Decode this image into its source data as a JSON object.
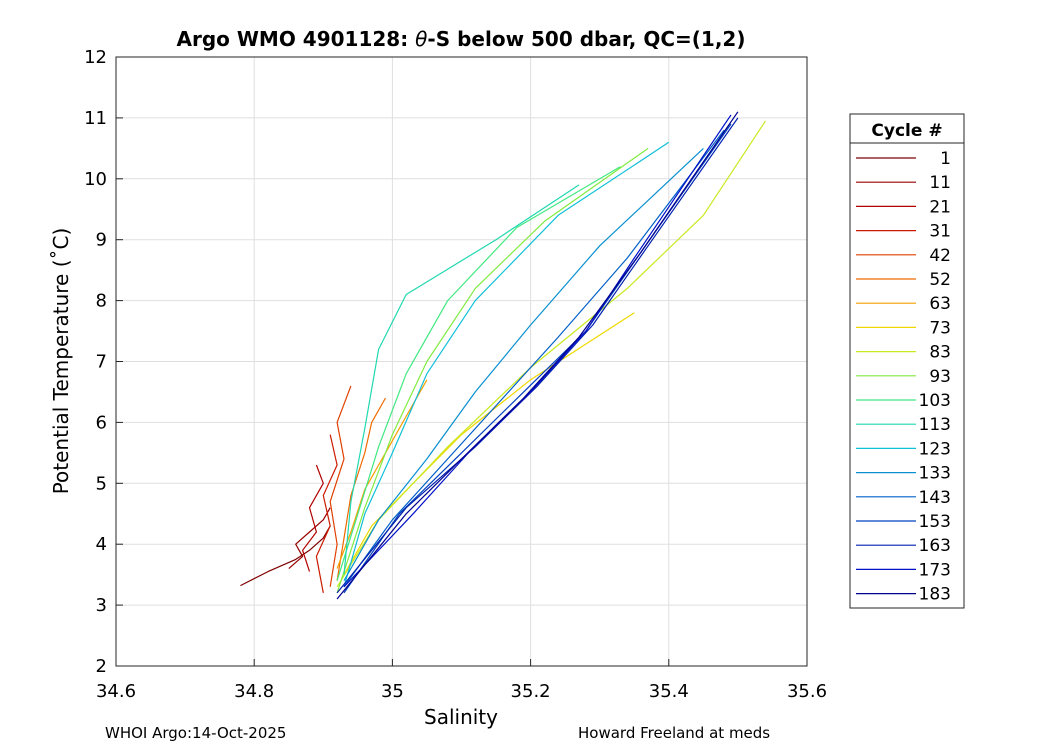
{
  "chart_data": {
    "type": "line",
    "title_prefix": "Argo WMO 4901128: ",
    "title_theta": "θ",
    "title_suffix": "-S below 500 dbar,  QC=(1,2)",
    "xlabel": "Salinity",
    "ylabel": "Potential Temperature (˚C)",
    "xlim": [
      34.6,
      35.6
    ],
    "ylim": [
      2,
      12
    ],
    "xticks": [
      34.6,
      34.8,
      35,
      35.2,
      35.4,
      35.6
    ],
    "xtick_labels": [
      "34.6",
      "34.8",
      "35",
      "35.2",
      "35.4",
      "35.6"
    ],
    "yticks": [
      2,
      3,
      4,
      5,
      6,
      7,
      8,
      9,
      10,
      11,
      12
    ],
    "ytick_labels": [
      "2",
      "3",
      "4",
      "5",
      "6",
      "7",
      "8",
      "9",
      "10",
      "11",
      "12"
    ],
    "grid": true,
    "legend": {
      "title": "Cycle #",
      "placement": "outside-right",
      "entries": [
        "1",
        "11",
        "21",
        "31",
        "42",
        "52",
        "63",
        "73",
        "83",
        "93",
        "103",
        "113",
        "123",
        "133",
        "143",
        "153",
        "163",
        "173",
        "183"
      ],
      "colors": [
        "#7f0000",
        "#990000",
        "#b30000",
        "#cc1a00",
        "#e04000",
        "#ef6a00",
        "#f5a000",
        "#f0d800",
        "#c8ea20",
        "#80ec40",
        "#40e880",
        "#20d8b0",
        "#10c0d8",
        "#0890d0",
        "#0060c8",
        "#0040c0",
        "#0020b0",
        "#0010c8",
        "#000090"
      ]
    },
    "series": [
      {
        "name": "1",
        "color": "#7f0000",
        "points": [
          [
            34.78,
            3.32
          ],
          [
            34.82,
            3.55
          ],
          [
            34.86,
            3.75
          ],
          [
            34.88,
            3.9
          ],
          [
            34.9,
            4.1
          ],
          [
            34.91,
            4.3
          ]
        ]
      },
      {
        "name": "11",
        "color": "#990000",
        "points": [
          [
            34.85,
            3.6
          ],
          [
            34.87,
            3.8
          ],
          [
            34.86,
            4.0
          ],
          [
            34.88,
            4.2
          ],
          [
            34.9,
            4.4
          ],
          [
            34.91,
            4.6
          ]
        ]
      },
      {
        "name": "21",
        "color": "#b30000",
        "points": [
          [
            34.88,
            3.55
          ],
          [
            34.87,
            3.9
          ],
          [
            34.89,
            4.2
          ],
          [
            34.88,
            4.6
          ],
          [
            34.9,
            5.0
          ],
          [
            34.89,
            5.3
          ]
        ]
      },
      {
        "name": "31",
        "color": "#cc1a00",
        "points": [
          [
            34.9,
            3.2
          ],
          [
            34.89,
            3.8
          ],
          [
            34.91,
            4.3
          ],
          [
            34.9,
            4.8
          ],
          [
            34.92,
            5.3
          ],
          [
            34.91,
            5.8
          ]
        ]
      },
      {
        "name": "42",
        "color": "#e04000",
        "points": [
          [
            34.91,
            3.3
          ],
          [
            34.92,
            4.0
          ],
          [
            34.91,
            4.7
          ],
          [
            34.93,
            5.4
          ],
          [
            34.92,
            6.0
          ],
          [
            34.94,
            6.6
          ]
        ]
      },
      {
        "name": "52",
        "color": "#ef6a00",
        "points": [
          [
            34.92,
            3.4
          ],
          [
            34.93,
            4.1
          ],
          [
            34.94,
            4.8
          ],
          [
            34.96,
            5.5
          ],
          [
            34.97,
            6.0
          ],
          [
            34.99,
            6.4
          ]
        ]
      },
      {
        "name": "63",
        "color": "#f5a000",
        "points": [
          [
            34.92,
            3.6
          ],
          [
            34.94,
            4.2
          ],
          [
            34.96,
            4.9
          ],
          [
            34.99,
            5.5
          ],
          [
            35.02,
            6.1
          ],
          [
            35.05,
            6.7
          ]
        ]
      },
      {
        "name": "73",
        "color": "#f0d800",
        "points": [
          [
            34.93,
            3.5
          ],
          [
            34.97,
            4.3
          ],
          [
            35.03,
            5.0
          ],
          [
            35.1,
            5.8
          ],
          [
            35.2,
            6.7
          ],
          [
            35.35,
            7.8
          ]
        ]
      },
      {
        "name": "83",
        "color": "#c8ea20",
        "points": [
          [
            34.92,
            3.3
          ],
          [
            34.98,
            4.4
          ],
          [
            35.08,
            5.6
          ],
          [
            35.2,
            6.9
          ],
          [
            35.34,
            8.2
          ],
          [
            35.45,
            9.4
          ],
          [
            35.54,
            10.95
          ]
        ]
      },
      {
        "name": "93",
        "color": "#80ec40",
        "points": [
          [
            34.92,
            3.2
          ],
          [
            34.96,
            4.6
          ],
          [
            35.0,
            5.8
          ],
          [
            35.05,
            7.0
          ],
          [
            35.12,
            8.2
          ],
          [
            35.22,
            9.3
          ],
          [
            35.37,
            10.5
          ]
        ]
      },
      {
        "name": "103",
        "color": "#40e880",
        "points": [
          [
            34.92,
            3.4
          ],
          [
            34.95,
            4.5
          ],
          [
            34.98,
            5.6
          ],
          [
            35.02,
            6.8
          ],
          [
            35.08,
            8.0
          ],
          [
            35.18,
            9.2
          ],
          [
            35.33,
            10.2
          ]
        ]
      },
      {
        "name": "113",
        "color": "#20d8b0",
        "points": [
          [
            34.93,
            3.5
          ],
          [
            34.94,
            4.7
          ],
          [
            34.96,
            5.9
          ],
          [
            34.98,
            7.2
          ],
          [
            35.02,
            8.1
          ],
          [
            35.15,
            9.0
          ],
          [
            35.27,
            9.9
          ]
        ]
      },
      {
        "name": "123",
        "color": "#10c0d8",
        "points": [
          [
            34.93,
            3.3
          ],
          [
            34.96,
            4.5
          ],
          [
            35.0,
            5.5
          ],
          [
            35.05,
            6.8
          ],
          [
            35.12,
            8.0
          ],
          [
            35.24,
            9.4
          ],
          [
            35.4,
            10.6
          ]
        ]
      },
      {
        "name": "133",
        "color": "#0890d0",
        "points": [
          [
            34.93,
            3.4
          ],
          [
            34.98,
            4.4
          ],
          [
            35.05,
            5.4
          ],
          [
            35.12,
            6.5
          ],
          [
            35.2,
            7.6
          ],
          [
            35.3,
            8.9
          ],
          [
            35.45,
            10.5
          ]
        ]
      },
      {
        "name": "143",
        "color": "#0060c8",
        "points": [
          [
            34.93,
            3.3
          ],
          [
            35.0,
            4.4
          ],
          [
            35.08,
            5.4
          ],
          [
            35.16,
            6.4
          ],
          [
            35.24,
            7.4
          ],
          [
            35.34,
            8.7
          ],
          [
            35.48,
            10.8
          ]
        ]
      },
      {
        "name": "153",
        "color": "#0040c0",
        "points": [
          [
            34.93,
            3.2
          ],
          [
            35.01,
            4.5
          ],
          [
            35.1,
            5.5
          ],
          [
            35.19,
            6.5
          ],
          [
            35.28,
            7.5
          ],
          [
            35.36,
            8.8
          ],
          [
            35.49,
            10.9
          ]
        ]
      },
      {
        "name": "163",
        "color": "#0020b0",
        "points": [
          [
            34.92,
            3.2
          ],
          [
            35.02,
            4.6
          ],
          [
            35.12,
            5.6
          ],
          [
            35.21,
            6.6
          ],
          [
            35.29,
            7.6
          ],
          [
            35.37,
            8.9
          ],
          [
            35.5,
            11.0
          ]
        ]
      },
      {
        "name": "173",
        "color": "#0010c8",
        "points": [
          [
            34.93,
            3.3
          ],
          [
            35.03,
            4.5
          ],
          [
            35.11,
            5.5
          ],
          [
            35.2,
            6.5
          ],
          [
            35.28,
            7.5
          ],
          [
            35.35,
            8.7
          ],
          [
            35.49,
            11.05
          ]
        ]
      },
      {
        "name": "183",
        "color": "#000090",
        "points": [
          [
            34.92,
            3.1
          ],
          [
            35.02,
            4.5
          ],
          [
            35.1,
            5.4
          ],
          [
            35.19,
            6.4
          ],
          [
            35.27,
            7.4
          ],
          [
            35.36,
            8.8
          ],
          [
            35.5,
            11.1
          ]
        ]
      }
    ]
  },
  "footer": {
    "left": "WHOI Argo:14-Oct-2025",
    "right": "Howard Freeland at meds"
  }
}
